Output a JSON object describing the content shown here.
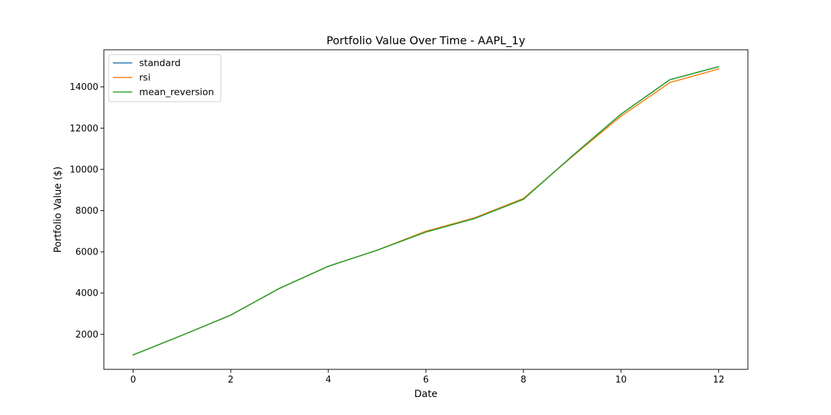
{
  "chart_data": {
    "type": "line",
    "title": "Portfolio Value Over Time - AAPL_1y",
    "xlabel": "Date",
    "ylabel": "Portfolio Value ($)",
    "xlim": [
      -0.6,
      12.6
    ],
    "ylim": [
      300,
      15800
    ],
    "xticks": [
      0,
      2,
      4,
      6,
      8,
      10,
      12
    ],
    "yticks": [
      2000,
      4000,
      6000,
      8000,
      10000,
      12000,
      14000
    ],
    "grid": false,
    "legend_position": "top-left",
    "x": [
      0,
      1,
      2,
      3,
      4,
      5,
      6,
      7,
      8,
      9,
      10,
      11,
      12
    ],
    "series": [
      {
        "name": "standard",
        "color": "#1f77b4",
        "values": [
          1000,
          1950,
          2930,
          4230,
          5300,
          6080,
          6960,
          7620,
          8550,
          10650,
          12680,
          14350,
          14980
        ]
      },
      {
        "name": "rsi",
        "color": "#ff7f0e",
        "values": [
          1000,
          1950,
          2930,
          4230,
          5300,
          6080,
          7000,
          7650,
          8590,
          10620,
          12580,
          14210,
          14870
        ]
      },
      {
        "name": "mean_reversion",
        "color": "#2ca02c",
        "values": [
          1000,
          1950,
          2930,
          4230,
          5300,
          6080,
          6960,
          7620,
          8550,
          10650,
          12680,
          14350,
          14980
        ]
      }
    ]
  }
}
